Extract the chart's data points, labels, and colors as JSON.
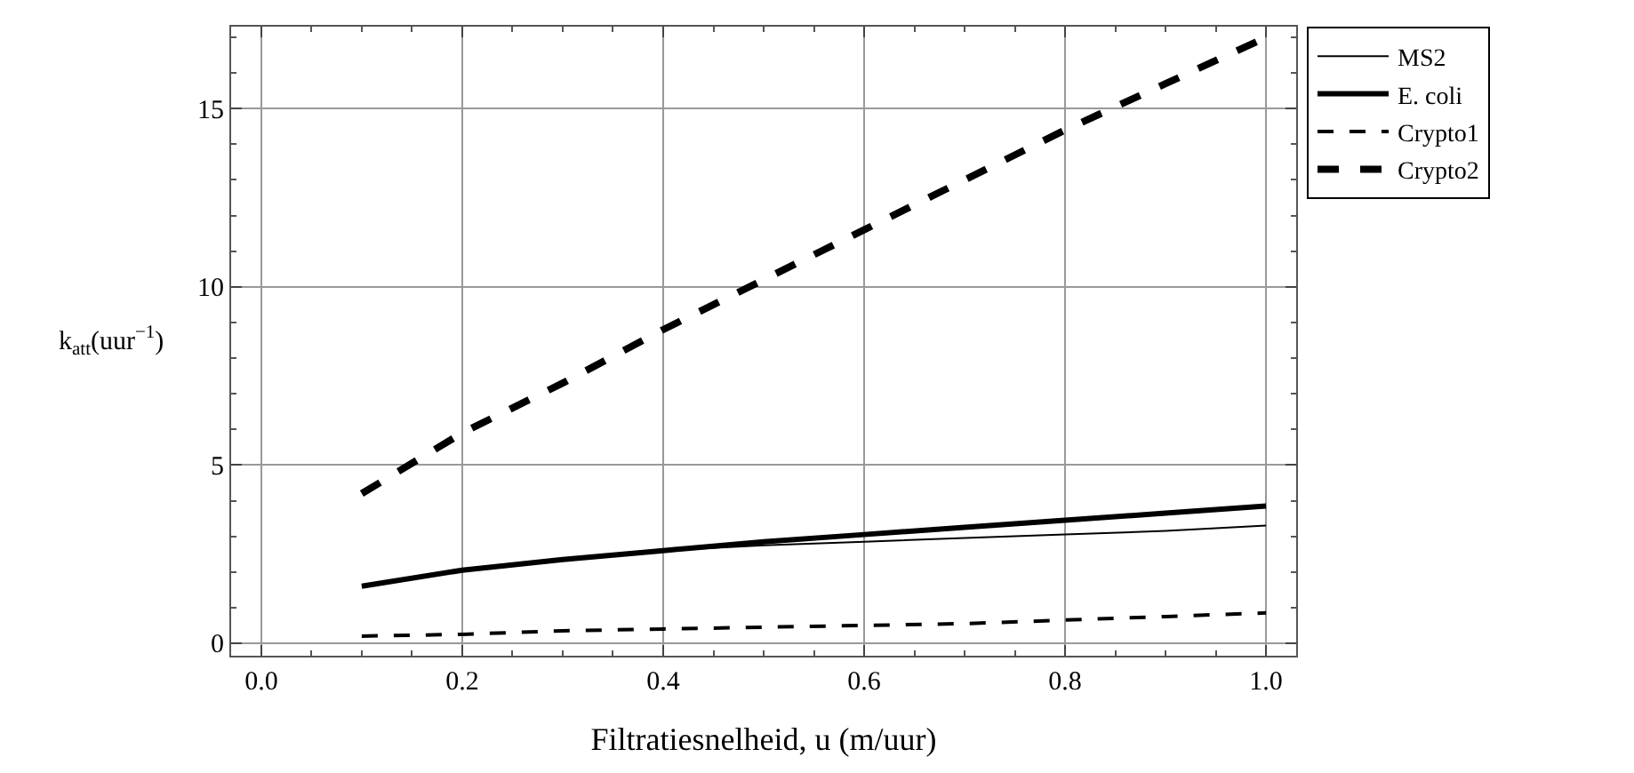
{
  "chart_data": {
    "type": "line",
    "xlabel": "Filtratiesnelheid, u (m/uur)",
    "ylabel": "k$_{att}$(uur$^{−1}$)",
    "x": [
      0.1,
      0.2,
      0.3,
      0.4,
      0.5,
      0.6,
      0.7,
      0.8,
      0.9,
      1.0
    ],
    "series": [
      {
        "name": "MS2",
        "color": "#000000",
        "line_style": "solid",
        "values": [
          1.6,
          2.05,
          2.35,
          2.6,
          2.75,
          2.85,
          2.95,
          3.05,
          3.15,
          3.3
        ]
      },
      {
        "name": "E. coli",
        "color": "#000000",
        "line_style": "solid",
        "values": [
          1.6,
          2.05,
          2.35,
          2.6,
          2.85,
          3.05,
          3.25,
          3.45,
          3.65,
          3.85
        ]
      },
      {
        "name": "Crypto1",
        "color": "#000000",
        "line_style": "dashed",
        "values": [
          0.2,
          0.25,
          0.35,
          0.4,
          0.45,
          0.5,
          0.55,
          0.65,
          0.75,
          0.85
        ]
      },
      {
        "name": "Crypto2",
        "color": "#000000",
        "line_style": "dashed",
        "values": [
          4.2,
          5.9,
          7.3,
          8.8,
          10.2,
          11.6,
          13.0,
          14.4,
          15.7,
          17.0
        ]
      }
    ],
    "xlim": [
      -0.03,
      1.03
    ],
    "ylim": [
      -0.35,
      17.3
    ],
    "xticks": [
      {
        "value": 0,
        "label": "0.0"
      },
      0.2,
      0.4,
      0.6,
      0.8,
      {
        "value": 1,
        "label": "1.0"
      }
    ],
    "yticks": [
      0,
      5,
      10,
      15
    ],
    "grid": true,
    "legend": "right",
    "marker": "none"
  }
}
